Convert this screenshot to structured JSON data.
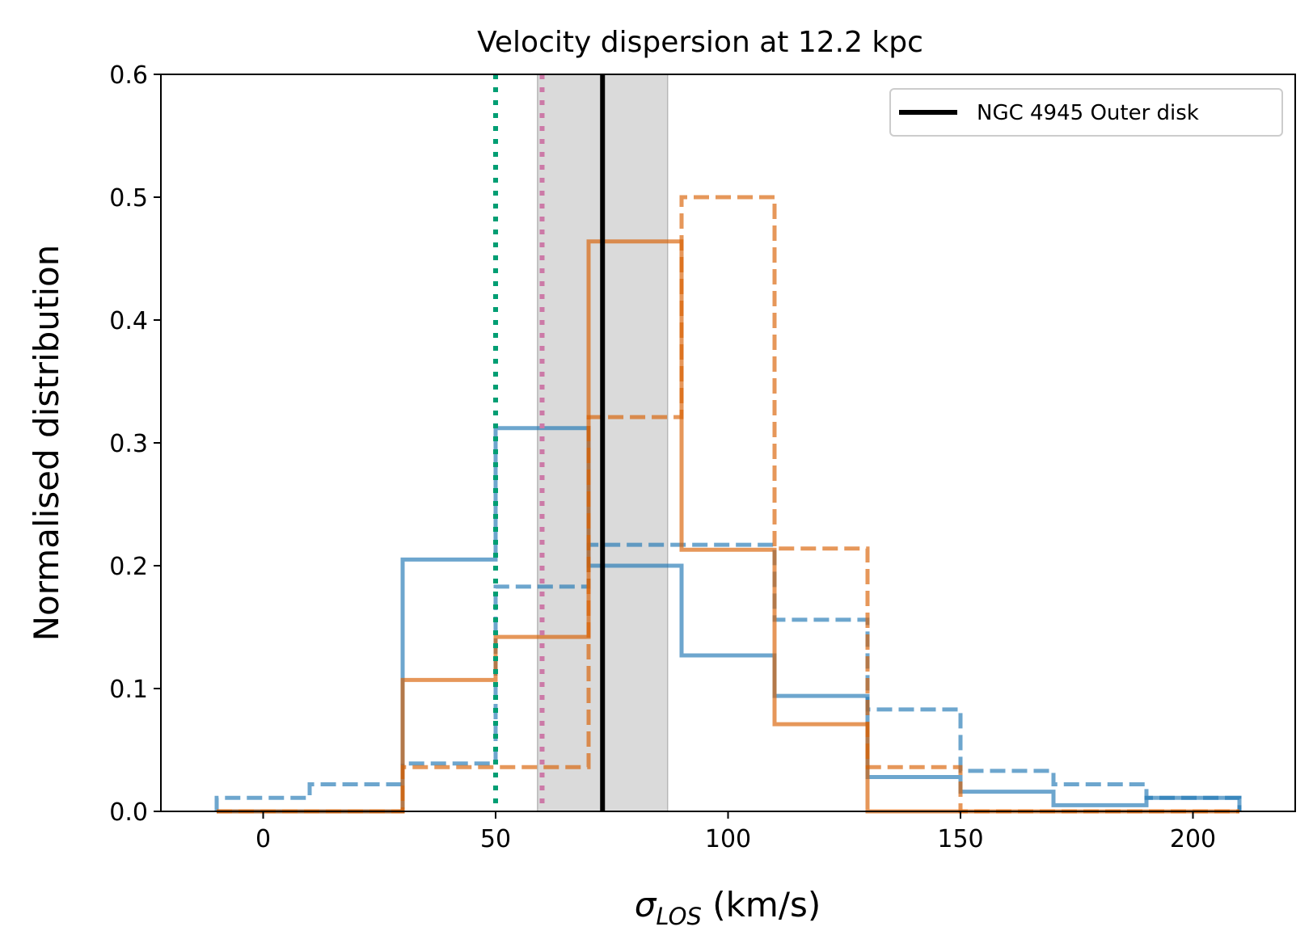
{
  "chart_data": {
    "type": "histogram",
    "title": "Velocity dispersion at 12.2 kpc",
    "xlabel_sym": "σ",
    "xlabel_sub": "LOS",
    "xlabel_unit": " (km/s)",
    "ylabel": "Normalised distribution",
    "xlim": [
      -22,
      222
    ],
    "ylim": [
      0,
      0.6
    ],
    "xticks": [
      0,
      50,
      100,
      150,
      200
    ],
    "xtick_labels": [
      "0",
      "50",
      "100",
      "150",
      "200"
    ],
    "yticks": [
      0,
      0.1,
      0.2,
      0.3,
      0.4,
      0.5,
      0.6
    ],
    "ytick_labels": [
      "0.0",
      "0.1",
      "0.2",
      "0.3",
      "0.4",
      "0.5",
      "0.6"
    ],
    "bin_edges": [
      -10,
      10,
      30,
      50,
      70,
      90,
      110,
      130,
      150,
      170,
      190,
      210
    ],
    "series": [
      {
        "key": "blue-solid",
        "color": "#1f77b4",
        "dash": "solid",
        "values": [
          0,
          0,
          0.205,
          0.312,
          0.2,
          0.127,
          0.094,
          0.028,
          0.016,
          0.005,
          0.011
        ]
      },
      {
        "key": "blue-dashed",
        "color": "#1f77b4",
        "dash": "dashed",
        "values": [
          0.011,
          0.022,
          0.039,
          0.183,
          0.217,
          0.217,
          0.156,
          0.083,
          0.033,
          0.022,
          0.011
        ]
      },
      {
        "key": "orange-solid",
        "color": "#d95f02",
        "dash": "solid",
        "values": [
          0,
          0,
          0.107,
          0.142,
          0.464,
          0.213,
          0.071,
          0,
          0,
          0,
          0
        ]
      },
      {
        "key": "orange-dashed",
        "color": "#d95f02",
        "dash": "dashed",
        "values": [
          0,
          0,
          0.036,
          0.036,
          0.321,
          0.5,
          0.214,
          0.036,
          0,
          0,
          0
        ]
      }
    ],
    "reference_lines": [
      {
        "key": "ngc4945-outer-disk",
        "x": 73,
        "color": "#000000",
        "style": "solid"
      },
      {
        "key": "green-dotted",
        "x": 50,
        "color": "#009e73",
        "style": "dotted"
      },
      {
        "key": "pink-dotted",
        "x": 60,
        "color": "#cc79a7",
        "style": "dotted"
      }
    ],
    "shaded_band": {
      "x_range": [
        59,
        87
      ],
      "color": "#bbbbbb"
    },
    "legend": {
      "placement": "top-right",
      "entries": [
        {
          "label": "NGC 4945 Outer disk",
          "color": "#000000"
        }
      ]
    },
    "grid": false
  }
}
